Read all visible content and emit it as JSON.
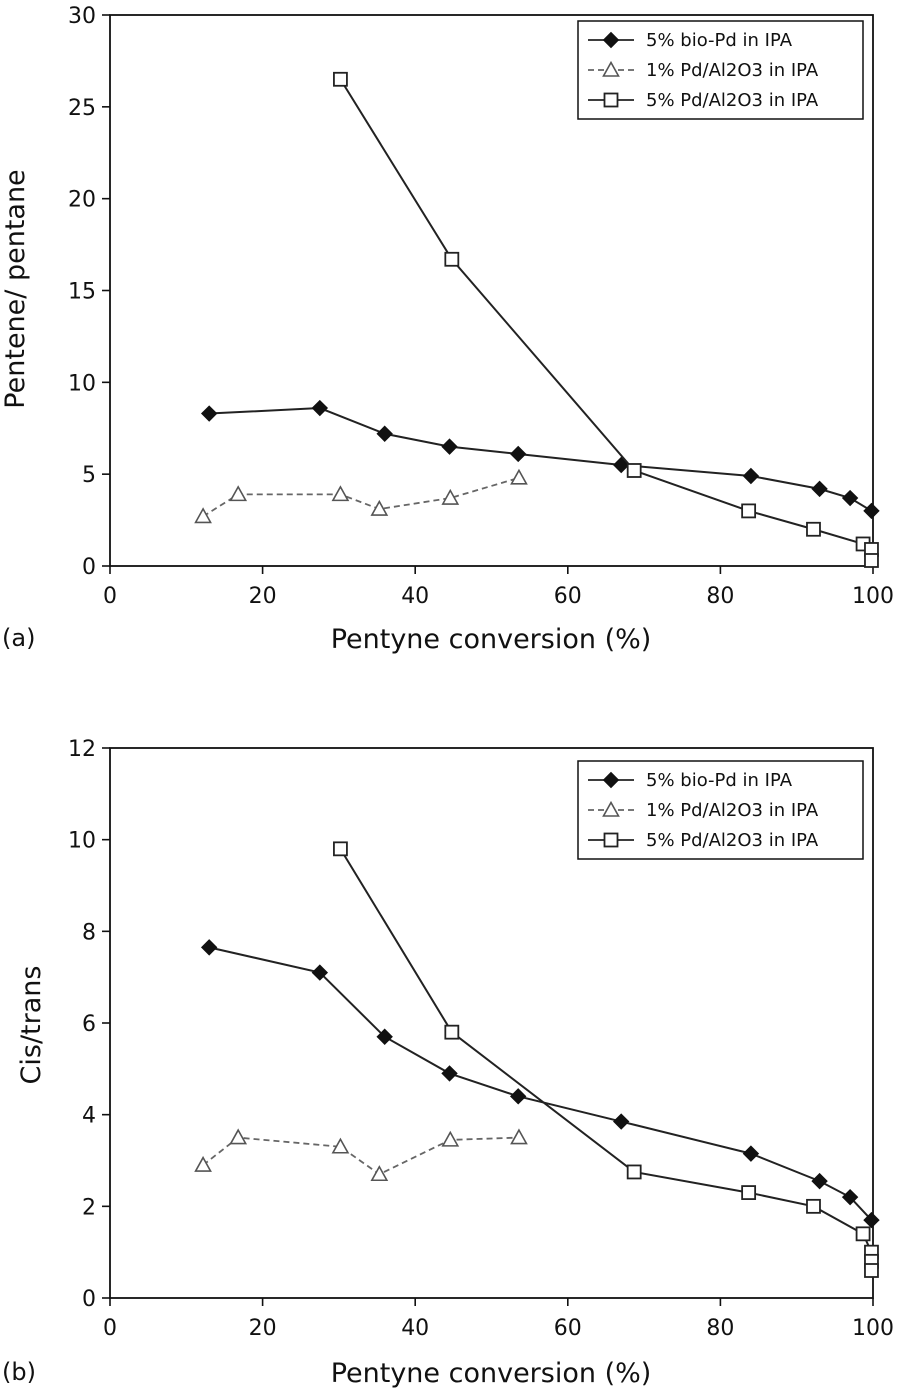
{
  "chart_data": [
    {
      "type": "line",
      "panel_label": "(a)",
      "xlabel": "Pentyne conversion (%)",
      "ylabel": "Pentene/ pentane",
      "xlim": [
        0,
        100
      ],
      "ylim": [
        0,
        30
      ],
      "xticks": [
        0,
        20,
        40,
        60,
        80,
        100
      ],
      "yticks": [
        0,
        5,
        10,
        15,
        20,
        25,
        30
      ],
      "legend_position": "top-right",
      "series": [
        {
          "name": "5% bio-Pd in IPA",
          "marker": "filled-diamond",
          "line": "solid",
          "x": [
            13,
            27.5,
            36,
            44.5,
            53.5,
            67,
            84,
            93,
            97,
            99.8
          ],
          "y": [
            8.3,
            8.6,
            7.2,
            6.5,
            6.1,
            5.5,
            4.9,
            4.2,
            3.7,
            3.0
          ]
        },
        {
          "name": "1% Pd/Al2O3 in IPA",
          "marker": "open-triangle",
          "line": "dashed",
          "x": [
            12.2,
            16.8,
            30.2,
            35.3,
            44.6,
            53.6
          ],
          "y": [
            2.7,
            3.9,
            3.9,
            3.1,
            3.7,
            4.8
          ]
        },
        {
          "name": "5% Pd/Al2O3 in IPA",
          "marker": "open-square",
          "line": "solid",
          "x": [
            30.2,
            44.8,
            68.7,
            83.7,
            92.2,
            98.7,
            99.8,
            99.8
          ],
          "y": [
            26.5,
            16.7,
            5.2,
            3.0,
            2.0,
            1.2,
            0.9,
            0.3
          ]
        }
      ]
    },
    {
      "type": "line",
      "panel_label": "(b)",
      "xlabel": "Pentyne conversion (%)",
      "ylabel": "Cis/trans",
      "xlim": [
        0,
        100
      ],
      "ylim": [
        0,
        12
      ],
      "xticks": [
        0,
        20,
        40,
        60,
        80,
        100
      ],
      "yticks": [
        0,
        2,
        4,
        6,
        8,
        10,
        12
      ],
      "legend_position": "top-right",
      "series": [
        {
          "name": "5% bio-Pd in IPA",
          "marker": "filled-diamond",
          "line": "solid",
          "x": [
            13,
            27.5,
            36,
            44.5,
            53.5,
            67,
            84,
            93,
            97,
            99.8
          ],
          "y": [
            7.65,
            7.1,
            5.7,
            4.9,
            4.4,
            3.85,
            3.15,
            2.55,
            2.2,
            1.7
          ]
        },
        {
          "name": "1% Pd/Al2O3 in IPA",
          "marker": "open-triangle",
          "line": "dashed",
          "x": [
            12.2,
            16.8,
            30.2,
            35.3,
            44.6,
            53.6
          ],
          "y": [
            2.9,
            3.5,
            3.3,
            2.7,
            3.45,
            3.5
          ]
        },
        {
          "name": "5% Pd/Al2O3 in IPA",
          "marker": "open-square",
          "line": "solid",
          "x": [
            30.2,
            44.8,
            68.7,
            83.7,
            92.2,
            98.7,
            99.8,
            99.8,
            99.8
          ],
          "y": [
            9.8,
            5.8,
            2.75,
            2.3,
            2.0,
            1.4,
            1.0,
            0.8,
            0.6
          ]
        }
      ]
    }
  ]
}
